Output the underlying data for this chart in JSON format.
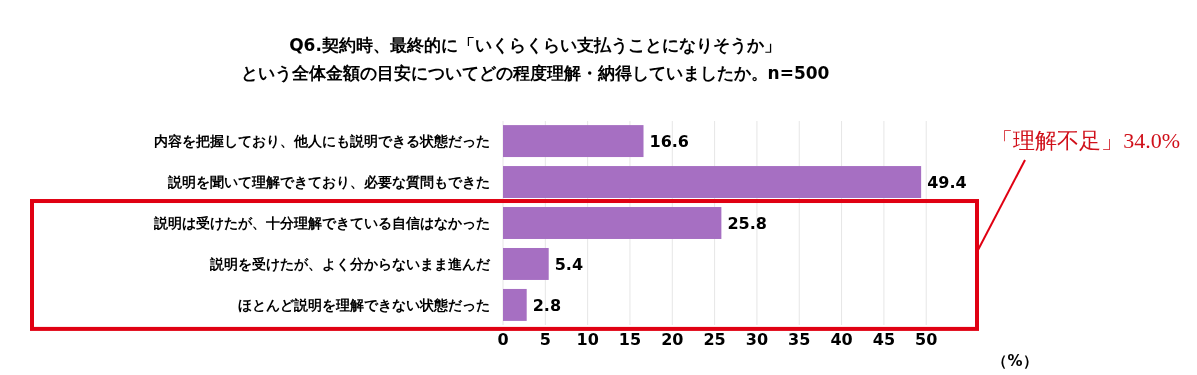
{
  "chart_data": {
    "type": "bar",
    "orientation": "horizontal",
    "title": "Q6.契約時、最終的に「いくらくらい支払うことになりそうか」",
    "subtitle": "という全体金額の目安についてどの程度理解・納得していましたか。n=500",
    "categories": [
      "内容を把握しており、他人にも説明できる状態だった",
      "説明を聞いて理解できており、必要な質問もできた",
      "説明は受けたが、十分理解できている自信はなかった",
      "説明を受けたが、よく分からないまま進んだ",
      "ほとんど説明を理解できない状態だった"
    ],
    "values": [
      16.6,
      49.4,
      25.8,
      5.4,
      2.8
    ],
    "color": "#a66fc2",
    "data_labels": true,
    "xlim": [
      0,
      56
    ],
    "xticks": [
      0,
      5,
      10,
      15,
      20,
      25,
      30,
      35,
      40,
      45,
      50
    ],
    "xlabel": "（%）",
    "grid": "x",
    "annotations": [
      "「理解不足」34.0%"
    ]
  }
}
